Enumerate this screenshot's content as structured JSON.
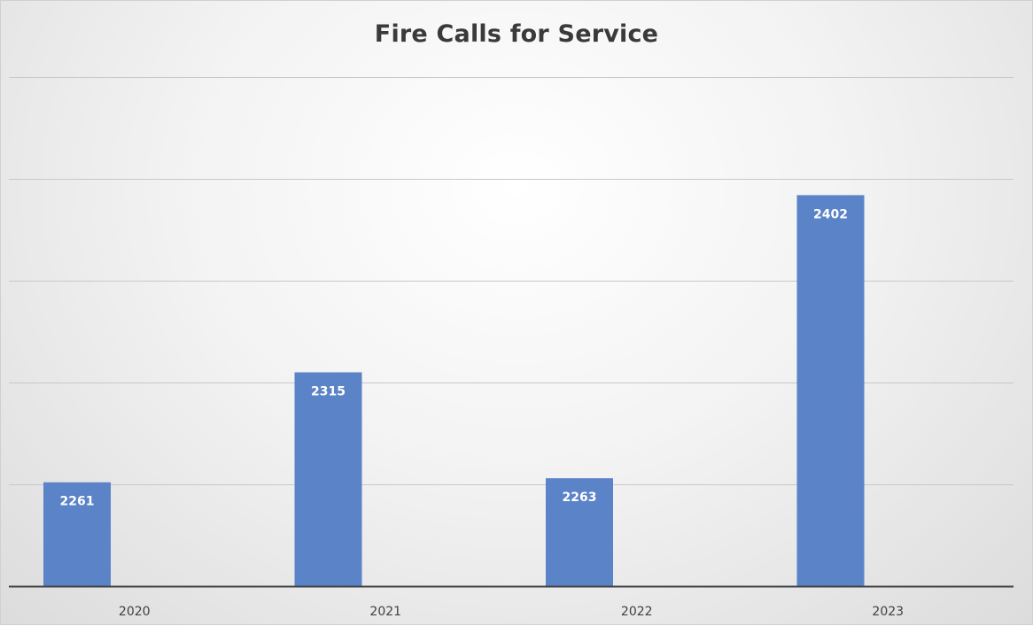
{
  "chart_data": {
    "type": "bar",
    "title": "Fire Calls for Service",
    "xlabel": "",
    "ylabel": "",
    "categories": [
      "2020",
      "2021",
      "2022",
      "2023"
    ],
    "values": [
      2261,
      2315,
      2263,
      2402
    ],
    "value_labels": [
      "2261",
      "2315",
      "2263",
      "2402"
    ],
    "ylim": [
      2210,
      2460
    ],
    "gridline_step": 50,
    "y_tick_labels_shown": false,
    "grid": true,
    "legend": "none",
    "bar_color": "#5b83c8",
    "background": "gradient gray"
  }
}
